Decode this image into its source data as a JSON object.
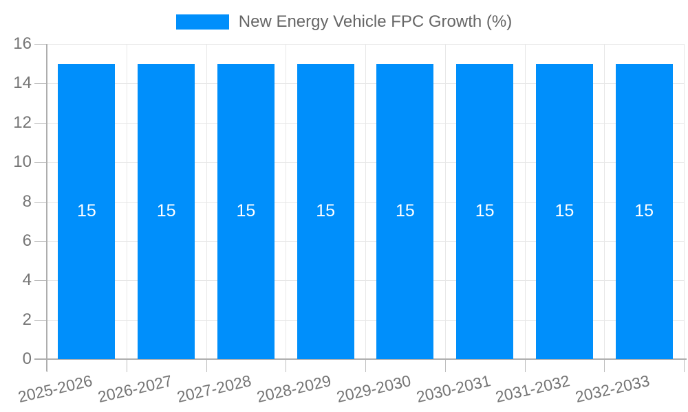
{
  "legend": {
    "label": "New Energy Vehicle FPC Growth (%)"
  },
  "chart_data": {
    "type": "bar",
    "title": "",
    "xlabel": "",
    "ylabel": "",
    "categories": [
      "2025-2026",
      "2026-2027",
      "2027-2028",
      "2028-2029",
      "2029-2030",
      "2030-2031",
      "2031-2032",
      "2032-2033"
    ],
    "series": [
      {
        "name": "New Energy Vehicle FPC Growth (%)",
        "values": [
          15,
          15,
          15,
          15,
          15,
          15,
          15,
          15
        ]
      }
    ],
    "bar_value_labels": [
      "15",
      "15",
      "15",
      "15",
      "15",
      "15",
      "15",
      "15"
    ],
    "ylim": [
      0,
      16
    ],
    "yticks": [
      0,
      2,
      4,
      6,
      8,
      10,
      12,
      14,
      16
    ],
    "grid": "on",
    "legend_position": "top",
    "colors": {
      "bar": "#008FFB",
      "grid": "#e7e7e7",
      "axis": "#aeaeae",
      "tick": "#bdbdbd",
      "tick_label": "#757575",
      "legend_text": "#666666",
      "value_label": "#ffffff",
      "background": "#ffffff"
    }
  }
}
